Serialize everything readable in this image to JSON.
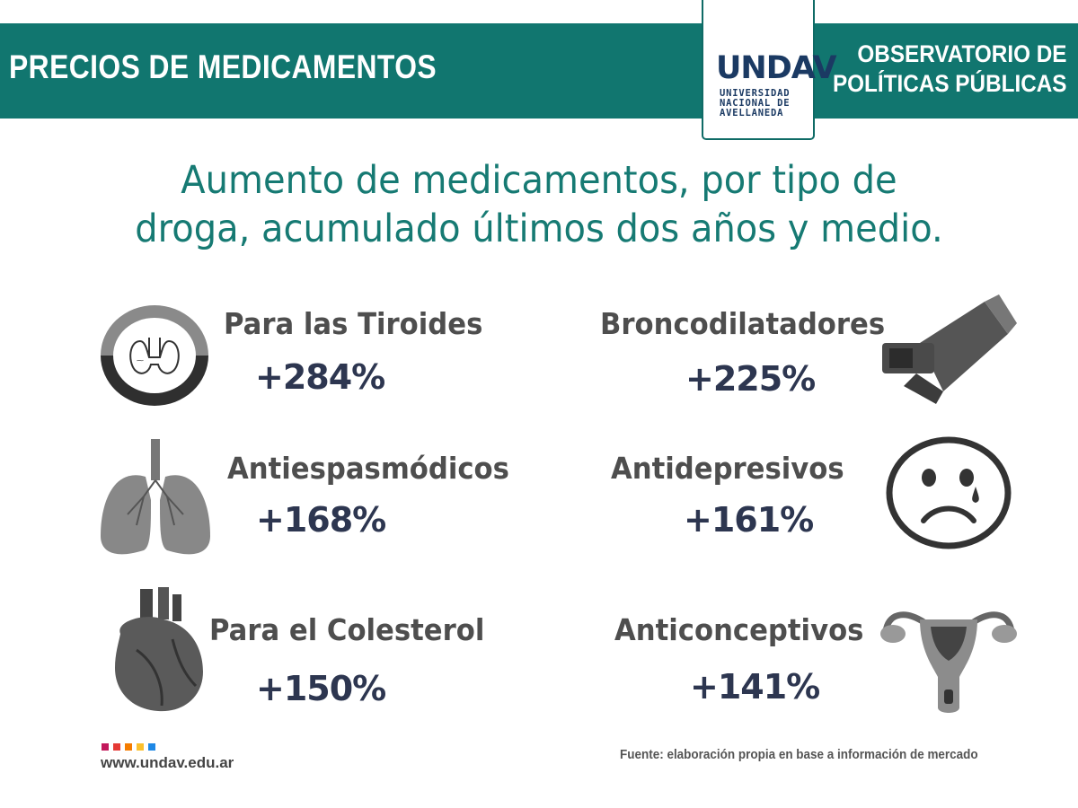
{
  "header": {
    "title": "PRECIOS DE MEDICAMENTOS",
    "observatory_line1": "OBSERVATORIO DE",
    "observatory_line2": "POLÍTICAS PÚBLICAS",
    "color": "#11766f"
  },
  "logo": {
    "mark": "UNDAV",
    "line1": "UNIVERSIDAD",
    "line2": "NACIONAL DE",
    "line3": "AVELLANEDA"
  },
  "subtitle": {
    "line1": "Aumento de medicamentos, por tipo de",
    "line2": "droga, acumulado últimos dos años y medio."
  },
  "items": [
    {
      "label": "Para las Tiroides",
      "value": "+284%",
      "icon": "thyroid-icon"
    },
    {
      "label": "Broncodilatadores",
      "value": "+225%",
      "icon": "inhaler-icon"
    },
    {
      "label": "Antiespasmódicos",
      "value": "+168%",
      "icon": "lungs-icon"
    },
    {
      "label": "Antidepresivos",
      "value": "+161%",
      "icon": "sad-face-icon"
    },
    {
      "label": "Para el Colesterol",
      "value": "+150%",
      "icon": "heart-icon"
    },
    {
      "label": "Anticonceptivos",
      "value": "+141%",
      "icon": "uterus-icon"
    }
  ],
  "footer": {
    "website": "www.undav.edu.ar",
    "source": "Fuente: elaboración propia en base a información de mercado",
    "dot_colors": [
      "#c2185b",
      "#e53935",
      "#f57c00",
      "#fbc02d",
      "#1e88e5"
    ]
  }
}
